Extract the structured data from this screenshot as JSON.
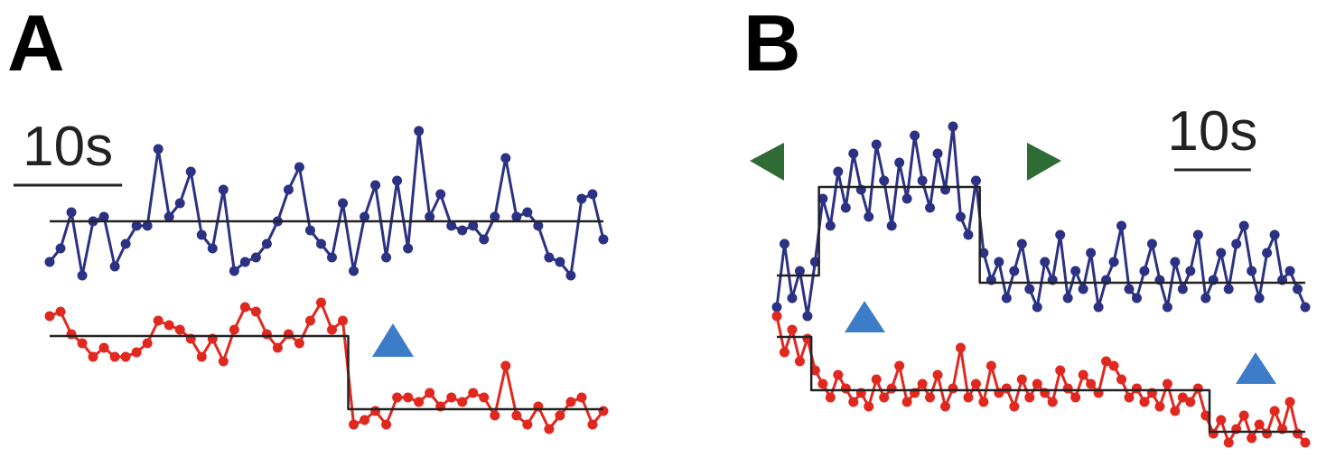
{
  "chart_data": [
    {
      "type": "line",
      "title": "A",
      "scale_bar": {
        "value": 10,
        "label": "10s"
      },
      "x": [
        0,
        1,
        2,
        3,
        4,
        5,
        6,
        7,
        8,
        9,
        10,
        11,
        12,
        13,
        14,
        15,
        16,
        17,
        18,
        19,
        20,
        21,
        22,
        23,
        24,
        25,
        26,
        27,
        28,
        29,
        30,
        31,
        32,
        33,
        34,
        35,
        36,
        37,
        38,
        39,
        40,
        41,
        42,
        43,
        44,
        45,
        46,
        47,
        48,
        49,
        50,
        51
      ],
      "xlim": [
        0,
        52
      ],
      "ylim": [
        0,
        360
      ],
      "series": [
        {
          "color": "#2b3183",
          "markers": true,
          "values": [
            200,
            215,
            255,
            185,
            245,
            250,
            195,
            220,
            240,
            240,
            325,
            250,
            265,
            300,
            230,
            215,
            280,
            190,
            200,
            205,
            220,
            245,
            280,
            305,
            235,
            220,
            205,
            265,
            190,
            250,
            285,
            205,
            290,
            215,
            345,
            250,
            275,
            240,
            235,
            240,
            225,
            250,
            315,
            250,
            255,
            240,
            205,
            200,
            185,
            270,
            275,
            225
          ]
        },
        {
          "color": "#222222",
          "drawstyle": "steps-mid",
          "values": [
            245,
            245,
            245,
            245,
            245,
            245,
            245,
            245,
            245,
            245,
            245,
            245,
            245,
            245,
            245,
            245,
            245,
            245,
            245,
            245,
            245,
            245,
            245,
            245,
            245,
            245,
            245,
            245,
            245,
            245,
            245,
            245,
            245,
            245,
            245,
            245,
            245,
            245,
            245,
            245,
            245,
            245,
            245,
            245,
            245,
            245,
            245,
            245,
            245,
            245,
            245,
            245
          ]
        },
        {
          "color": "#e0281f",
          "markers": true,
          "values": [
            140,
            145,
            120,
            110,
            95,
            105,
            95,
            95,
            100,
            110,
            135,
            130,
            125,
            115,
            95,
            115,
            90,
            125,
            150,
            145,
            120,
            105,
            120,
            110,
            135,
            155,
            125,
            135,
            20,
            25,
            35,
            20,
            50,
            50,
            45,
            55,
            40,
            50,
            45,
            55,
            50,
            30,
            85,
            30,
            20,
            40,
            15,
            30,
            45,
            50,
            20,
            35
          ]
        },
        {
          "color": "#222222",
          "drawstyle": "steps-mid",
          "values": [
            118,
            118,
            118,
            118,
            118,
            118,
            118,
            118,
            118,
            118,
            118,
            118,
            118,
            118,
            118,
            118,
            118,
            118,
            118,
            118,
            118,
            118,
            118,
            118,
            118,
            118,
            118,
            118,
            37,
            37,
            37,
            37,
            37,
            37,
            37,
            37,
            37,
            37,
            37,
            37,
            37,
            37,
            37,
            37,
            37,
            37,
            37,
            37,
            37,
            37,
            37,
            37
          ]
        }
      ]
    },
    {
      "type": "line",
      "title": "B",
      "scale_bar": {
        "value": 10,
        "label": "10s"
      },
      "x": [
        0,
        1,
        2,
        3,
        4,
        5,
        6,
        7,
        8,
        9,
        10,
        11,
        12,
        13,
        14,
        15,
        16,
        17,
        18,
        19,
        20,
        21,
        22,
        23,
        24,
        25,
        26,
        27,
        28,
        29,
        30,
        31,
        32,
        33,
        34,
        35,
        36,
        37,
        38,
        39,
        40,
        41,
        42,
        43,
        44,
        45,
        46,
        47,
        48,
        49,
        50,
        51,
        52,
        53,
        54,
        55,
        56,
        57,
        58,
        59,
        60,
        61,
        62,
        63,
        64,
        65,
        66,
        67,
        68,
        69
      ],
      "xlim": [
        0,
        69
      ],
      "ylim": [
        0,
        380
      ],
      "series": [
        {
          "color": "#2b3183",
          "markers": true,
          "values": [
            160,
            230,
            170,
            200,
            150,
            210,
            280,
            250,
            310,
            270,
            330,
            290,
            260,
            340,
            300,
            250,
            320,
            280,
            350,
            300,
            270,
            330,
            290,
            360,
            260,
            240,
            300,
            220,
            190,
            210,
            170,
            200,
            230,
            180,
            160,
            210,
            190,
            240,
            170,
            200,
            180,
            220,
            160,
            190,
            210,
            250,
            180,
            170,
            200,
            230,
            190,
            160,
            210,
            180,
            200,
            240,
            170,
            190,
            220,
            180,
            230,
            250,
            200,
            170,
            220,
            240,
            190,
            200,
            180,
            160
          ]
        },
        {
          "color": "#222222",
          "drawstyle": "steps-mid",
          "values": [
            195,
            195,
            195,
            195,
            195,
            195,
            293,
            293,
            293,
            293,
            293,
            293,
            293,
            293,
            293,
            293,
            293,
            293,
            293,
            293,
            293,
            293,
            293,
            293,
            293,
            293,
            293,
            187,
            187,
            187,
            187,
            187,
            187,
            187,
            187,
            187,
            187,
            187,
            187,
            187,
            187,
            187,
            187,
            187,
            187,
            187,
            187,
            187,
            187,
            187,
            187,
            187,
            187,
            187,
            187,
            187,
            187,
            187,
            187,
            187,
            187,
            187,
            187,
            187,
            187,
            187,
            187,
            187,
            187,
            187
          ]
        },
        {
          "color": "#e0281f",
          "markers": true,
          "values": [
            150,
            110,
            135,
            100,
            125,
            90,
            75,
            60,
            85,
            70,
            55,
            65,
            50,
            80,
            60,
            70,
            95,
            55,
            65,
            75,
            60,
            85,
            50,
            70,
            115,
            60,
            75,
            55,
            95,
            65,
            70,
            50,
            80,
            60,
            75,
            65,
            55,
            90,
            70,
            60,
            85,
            75,
            65,
            100,
            95,
            80,
            60,
            70,
            55,
            65,
            50,
            75,
            45,
            60,
            55,
            70,
            40,
            20,
            35,
            10,
            25,
            40,
            15,
            30,
            20,
            45,
            25,
            55,
            20,
            10
          ]
        },
        {
          "color": "#222222",
          "drawstyle": "steps-mid",
          "values": [
            127,
            127,
            127,
            127,
            127,
            68,
            68,
            68,
            68,
            68,
            68,
            68,
            68,
            68,
            68,
            68,
            68,
            68,
            68,
            68,
            68,
            68,
            68,
            68,
            68,
            68,
            68,
            68,
            68,
            68,
            68,
            68,
            68,
            68,
            68,
            68,
            68,
            68,
            68,
            68,
            68,
            68,
            68,
            68,
            68,
            68,
            68,
            68,
            68,
            68,
            68,
            68,
            68,
            68,
            68,
            68,
            68,
            22,
            22,
            22,
            22,
            22,
            22,
            22,
            22,
            22,
            22,
            22,
            22,
            22
          ]
        }
      ]
    }
  ]
}
